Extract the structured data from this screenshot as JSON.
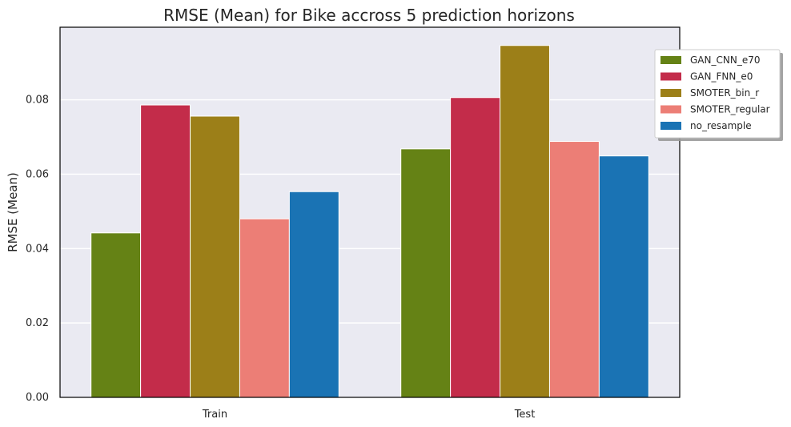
{
  "chart_data": {
    "type": "bar",
    "title": "RMSE (Mean) for Bike accross 5 prediction horizons",
    "xlabel": "",
    "ylabel": "RMSE (Mean)",
    "categories": [
      "Train",
      "Test"
    ],
    "ylim": [
      0,
      0.0995
    ],
    "yticks": [
      "0.00",
      "0.02",
      "0.04",
      "0.06",
      "0.08"
    ],
    "grid": true,
    "legend_position": "outside top-right",
    "series": [
      {
        "name": "GAN_CNN_e70",
        "color": "#658215",
        "values": [
          0.0442,
          0.0668
        ]
      },
      {
        "name": "GAN_FNN_e0",
        "color": "#c32c4a",
        "values": [
          0.0786,
          0.0806
        ]
      },
      {
        "name": "SMOTER_bin_r",
        "color": "#9c7f18",
        "values": [
          0.0756,
          0.0946
        ]
      },
      {
        "name": "SMOTER_regular",
        "color": "#ec7e76",
        "values": [
          0.048,
          0.0688
        ]
      },
      {
        "name": "no_resample",
        "color": "#1a73b4",
        "values": [
          0.0553,
          0.0649
        ]
      }
    ]
  }
}
